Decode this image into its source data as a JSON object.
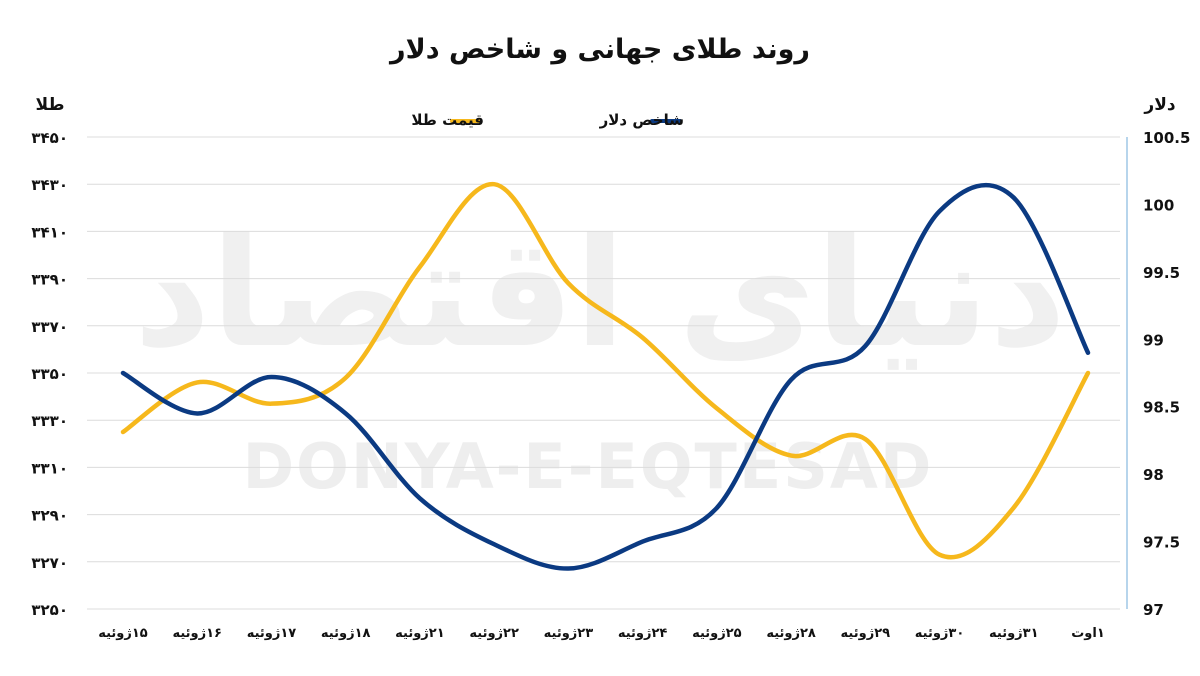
{
  "watermark": {
    "latin": "DONYA-E-EQTESAD",
    "persian": "دنیای اقتصاد"
  },
  "chart_data": {
    "type": "line",
    "title": "روند طلای جهانی و شاخص دلار",
    "ylabel_left": "طلا",
    "ylabel_right": "دلار",
    "categories": [
      "۱۵ژوئیه",
      "۱۶ژوئیه",
      "۱۷ژوئیه",
      "۱۸ژوئیه",
      "۲۱ژوئیه",
      "۲۲ژوئیه",
      "۲۳ژوئیه",
      "۲۴ژوئیه",
      "۲۵ژوئیه",
      "۲۸ژوئیه",
      "۲۹ژوئیه",
      "۳۰ژوئیه",
      "۳۱ژوئیه",
      "۱اوت"
    ],
    "y_left": {
      "range": [
        3250,
        3450
      ],
      "ticks": [
        3250,
        3270,
        3290,
        3310,
        3330,
        3350,
        3370,
        3390,
        3410,
        3430,
        3450
      ],
      "tick_labels": [
        "۳۲۵۰",
        "۳۲۷۰",
        "۳۲۹۰",
        "۳۳۱۰",
        "۳۳۳۰",
        "۳۳۵۰",
        "۳۳۷۰",
        "۳۳۹۰",
        "۳۴۱۰",
        "۳۴۳۰",
        "۳۴۵۰"
      ]
    },
    "y_right": {
      "range": [
        97,
        100.5
      ],
      "ticks": [
        97,
        97.5,
        98,
        98.5,
        99,
        99.5,
        100,
        100.5
      ],
      "tick_labels": [
        "97",
        "97.5",
        "98",
        "98.5",
        "99",
        "99.5",
        "100",
        "100.5"
      ]
    },
    "grid": "horizontal",
    "legend_position": "top-center",
    "series": [
      {
        "name": "قیمت طلا",
        "axis": "left",
        "color": "#F6B81C",
        "values": [
          3325,
          3346,
          3337,
          3348,
          3395,
          3430,
          3388,
          3365,
          3335,
          3315,
          3322,
          3273,
          3293,
          3350
        ]
      },
      {
        "name": "شاخص دلار",
        "axis": "right",
        "color": "#0B3A82",
        "values": [
          98.75,
          98.45,
          98.72,
          98.45,
          97.82,
          97.48,
          97.3,
          97.5,
          97.75,
          98.7,
          98.95,
          99.95,
          100.05,
          98.9
        ]
      }
    ]
  }
}
